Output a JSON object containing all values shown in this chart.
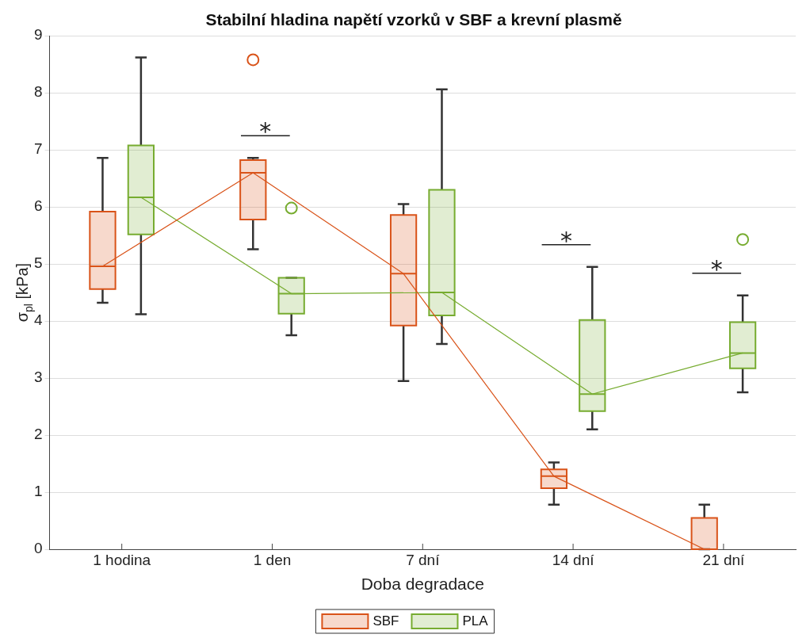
{
  "chart_data": {
    "type": "box",
    "title": "Stabilní hladina napětí vzorků v SBF a krevní plasmě",
    "xlabel": "Doba degradace",
    "ylabel": "σ$_{pl}$ [kPa]",
    "categories": [
      "1 hodina",
      "1 den",
      "7 dní",
      "14 dní",
      "21 dní"
    ],
    "ylim": [
      0,
      9
    ],
    "yticks": [
      0,
      1,
      2,
      3,
      4,
      5,
      6,
      7,
      8,
      9
    ],
    "grid": "y",
    "legend": "bottom",
    "series": [
      {
        "name": "SBF",
        "color": "#d95319",
        "boxes": [
          {
            "low": 4.32,
            "q1": 4.56,
            "median": 4.96,
            "q3": 5.92,
            "high": 6.86
          },
          {
            "low": 5.26,
            "q1": 5.78,
            "median": 6.6,
            "q3": 6.82,
            "high": 6.86,
            "outliers": [
              8.58
            ]
          },
          {
            "low": 2.95,
            "q1": 3.92,
            "median": 4.83,
            "q3": 5.86,
            "high": 6.05
          },
          {
            "low": 0.78,
            "q1": 1.07,
            "median": 1.28,
            "q3": 1.4,
            "high": 1.52
          },
          {
            "low": 0,
            "q1": 0,
            "median": 0,
            "q3": 0.55,
            "high": 0.78
          }
        ]
      },
      {
        "name": "PLA",
        "color": "#77ac30",
        "boxes": [
          {
            "low": 4.12,
            "q1": 5.52,
            "median": 6.17,
            "q3": 7.08,
            "high": 8.62
          },
          {
            "low": 3.75,
            "q1": 4.13,
            "median": 4.48,
            "q3": 4.76,
            "high": 4.76,
            "outliers": [
              5.98
            ]
          },
          {
            "low": 3.6,
            "q1": 4.1,
            "median": 4.5,
            "q3": 6.3,
            "high": 8.06
          },
          {
            "low": 2.1,
            "q1": 2.42,
            "median": 2.72,
            "q3": 4.02,
            "high": 4.95
          },
          {
            "low": 2.75,
            "q1": 3.17,
            "median": 3.44,
            "q3": 3.98,
            "high": 4.45,
            "outliers": [
              5.43
            ]
          }
        ]
      },
      {
        "type": "line",
        "color": "#d95319",
        "values": [
          4.96,
          6.6,
          4.83,
          1.28,
          0
        ]
      },
      {
        "type": "line",
        "color": "#77ac30",
        "values": [
          6.17,
          4.48,
          4.5,
          2.72,
          3.44
        ]
      }
    ],
    "annotations": [
      "*",
      "*",
      "*"
    ]
  }
}
